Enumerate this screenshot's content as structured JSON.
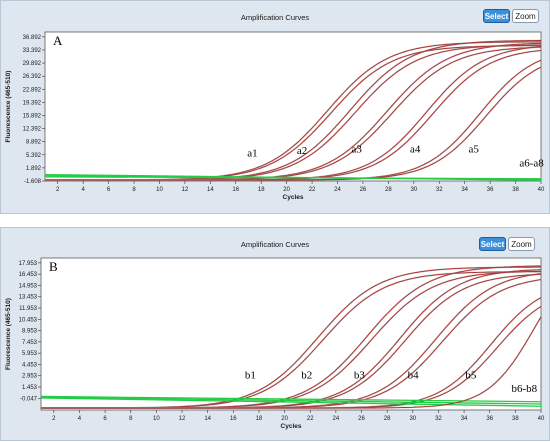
{
  "colors": {
    "panel_bg": "#dee6ef",
    "plot_bg": "#ffffff",
    "positive_curve": "#b03232",
    "positive_curve_edge": "#8a8a8a",
    "negative_curve": "#22cc44",
    "select_button": "#3c8fd8"
  },
  "toolbar": {
    "select_label": "Select",
    "zoom_label": "Zoom"
  },
  "chart_data": [
    {
      "type": "line",
      "title": "Amplification Curves",
      "panel_label": "A",
      "xlabel": "Cycles",
      "ylabel": "Fluorescence (465-510)",
      "xlim": [
        1,
        40
      ],
      "ylim": [
        -1.608,
        38.2
      ],
      "x_ticks": [
        2,
        4,
        6,
        8,
        10,
        12,
        14,
        16,
        18,
        20,
        22,
        24,
        26,
        28,
        30,
        32,
        34,
        36,
        38,
        40
      ],
      "y_ticks": [
        -1.608,
        1.892,
        5.392,
        8.892,
        12.392,
        15.892,
        19.392,
        22.892,
        26.392,
        29.892,
        33.392,
        36.892
      ],
      "grid": false,
      "series": [
        {
          "name": "a1",
          "label_xy": [
            16.9,
            5.0
          ],
          "curves": [
            {
              "midpoint": 23.2,
              "steep": 0.42,
              "plateau": 35.6
            },
            {
              "midpoint": 23.5,
              "steep": 0.42,
              "plateau": 34.6
            }
          ]
        },
        {
          "name": "a2",
          "label_xy": [
            20.8,
            5.6
          ],
          "curves": [
            {
              "midpoint": 25.0,
              "steep": 0.42,
              "plateau": 36.0
            },
            {
              "midpoint": 25.4,
              "steep": 0.42,
              "plateau": 34.8
            }
          ]
        },
        {
          "name": "a3",
          "label_xy": [
            25.1,
            6.0
          ],
          "curves": [
            {
              "midpoint": 27.9,
              "steep": 0.42,
              "plateau": 35.4
            },
            {
              "midpoint": 28.3,
              "steep": 0.42,
              "plateau": 34.4
            }
          ]
        },
        {
          "name": "a4",
          "label_xy": [
            29.7,
            6.0
          ],
          "curves": [
            {
              "midpoint": 31.0,
              "steep": 0.44,
              "plateau": 35.0
            },
            {
              "midpoint": 31.5,
              "steep": 0.44,
              "plateau": 34.1
            }
          ]
        },
        {
          "name": "a5",
          "label_xy": [
            34.3,
            6.0
          ],
          "curves": [
            {
              "midpoint": 35.2,
              "steep": 0.46,
              "plateau": 34.2
            },
            {
              "midpoint": 35.7,
              "steep": 0.46,
              "plateau": 33.0
            }
          ]
        },
        {
          "name": "a6-a8",
          "label_xy": [
            38.3,
            2.2
          ],
          "negative": true,
          "lines": [
            [
              -0.2,
              -1.2
            ],
            [
              -0.5,
              -1.0
            ],
            [
              0.1,
              -1.4
            ]
          ]
        }
      ]
    },
    {
      "type": "line",
      "title": "Amplification Curves",
      "panel_label": "B",
      "xlabel": "Cycles",
      "ylabel": "Fluorescence (465-510)",
      "xlim": [
        1,
        40
      ],
      "ylim": [
        -1.6,
        18.6
      ],
      "x_ticks": [
        2,
        4,
        6,
        8,
        10,
        12,
        14,
        16,
        18,
        20,
        22,
        24,
        26,
        28,
        30,
        32,
        34,
        36,
        38,
        40
      ],
      "y_ticks": [
        -0.047,
        1.453,
        2.953,
        4.453,
        5.953,
        7.453,
        8.953,
        10.453,
        11.953,
        13.453,
        14.953,
        16.453,
        17.953
      ],
      "grid": false,
      "series": [
        {
          "name": "b1",
          "label_xy": [
            16.9,
            2.6
          ],
          "curves": [
            {
              "midpoint": 22.6,
              "steep": 0.42,
              "plateau": 17.4
            },
            {
              "midpoint": 23.0,
              "steep": 0.42,
              "plateau": 16.8
            }
          ]
        },
        {
          "name": "b2",
          "label_xy": [
            21.3,
            2.6
          ],
          "curves": [
            {
              "midpoint": 26.4,
              "steep": 0.42,
              "plateau": 17.6
            },
            {
              "midpoint": 26.8,
              "steep": 0.42,
              "plateau": 16.9
            }
          ]
        },
        {
          "name": "b3",
          "label_xy": [
            25.4,
            2.6
          ],
          "curves": [
            {
              "midpoint": 29.0,
              "steep": 0.44,
              "plateau": 17.2
            },
            {
              "midpoint": 29.4,
              "steep": 0.44,
              "plateau": 16.6
            }
          ]
        },
        {
          "name": "b4",
          "label_xy": [
            29.6,
            2.6
          ],
          "curves": [
            {
              "midpoint": 31.8,
              "steep": 0.44,
              "plateau": 17.0
            },
            {
              "midpoint": 32.3,
              "steep": 0.44,
              "plateau": 16.3
            }
          ]
        },
        {
          "name": "b5",
          "label_xy": [
            34.1,
            2.6
          ],
          "curves": [
            {
              "midpoint": 36.1,
              "steep": 0.48,
              "plateau": 15.6
            },
            {
              "midpoint": 36.6,
              "steep": 0.48,
              "plateau": 14.8
            }
          ]
        },
        {
          "name": "b6-b8",
          "label_xy": [
            37.7,
            0.8
          ],
          "negative": true,
          "lines": [
            [
              0.1,
              -0.8
            ],
            [
              0.0,
              -1.1
            ],
            [
              0.2,
              -0.5
            ]
          ]
        },
        {
          "name": "",
          "curves": [
            {
              "midpoint": 39.5,
              "steep": 0.55,
              "plateau": 20.0
            }
          ]
        }
      ]
    }
  ]
}
